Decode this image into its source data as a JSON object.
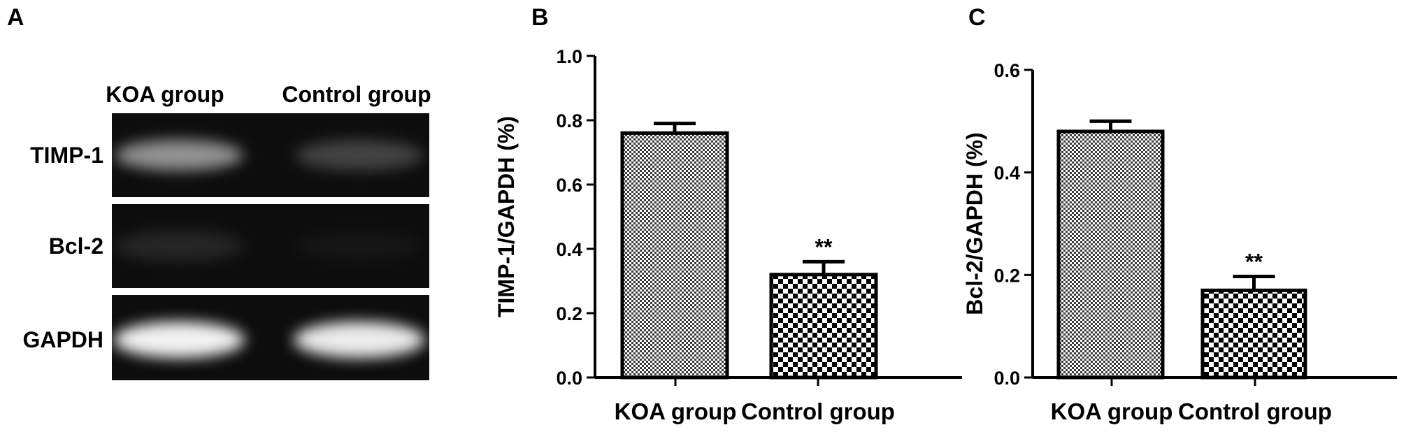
{
  "panel_a": {
    "letter": "A",
    "columns": [
      "KOA group",
      "Control group"
    ],
    "rows": [
      {
        "label": "TIMP-1",
        "intensity": [
          0.55,
          0.22
        ]
      },
      {
        "label": "Bcl-2",
        "intensity": [
          0.1,
          0.03
        ]
      },
      {
        "label": "GAPDH",
        "intensity": [
          0.95,
          0.92
        ]
      }
    ]
  },
  "chart_data": [
    {
      "panel": "B",
      "type": "bar",
      "categories": [
        "KOA group",
        "Control group"
      ],
      "values": [
        0.76,
        0.32
      ],
      "errors": [
        0.03,
        0.04
      ],
      "annotations": [
        "",
        "**"
      ],
      "ylabel": "TIMP-1/GAPDH (%)",
      "xlabel": "",
      "ylim": [
        0,
        1.0
      ],
      "yticks": [
        "0.0",
        "0.2",
        "0.4",
        "0.6",
        "0.8",
        "1.0"
      ]
    },
    {
      "panel": "C",
      "type": "bar",
      "categories": [
        "KOA group",
        "Control group"
      ],
      "values": [
        0.48,
        0.17
      ],
      "errors": [
        0.02,
        0.027
      ],
      "annotations": [
        "",
        "**"
      ],
      "ylabel": "Bcl-2/GAPDH (%)",
      "xlabel": "",
      "ylim": [
        0,
        0.6
      ],
      "yticks": [
        "0.0",
        "0.2",
        "0.4",
        "0.6"
      ]
    }
  ],
  "colors": {
    "ink": "#000000",
    "gel_background": "#0d0d0d"
  }
}
